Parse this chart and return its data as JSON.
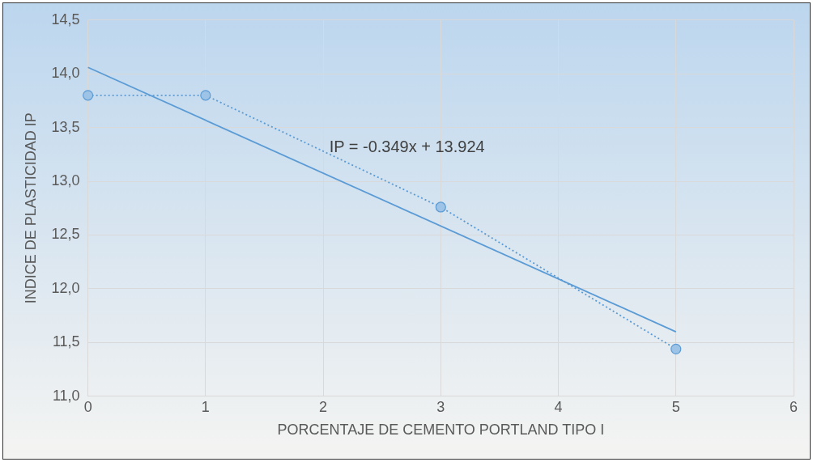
{
  "chart_data": {
    "type": "line",
    "xlabel": "PORCENTAJE DE CEMENTO PORTLAND TIPO I",
    "ylabel": "INDICE DE PLASTICIDAD IP",
    "x": [
      0,
      1,
      3,
      5
    ],
    "series": [
      {
        "color": "#5b9bd5",
        "values": [
          13.8,
          13.8,
          12.76,
          11.44
        ],
        "marker": "circle",
        "line_style": "dotted"
      },
      {
        "type": "line",
        "color": "#5b9bd5",
        "x": [
          0,
          5
        ],
        "values": [
          14.06,
          11.6
        ],
        "marker": "none",
        "line_style": "solid"
      }
    ],
    "xlim": [
      0,
      6
    ],
    "xticks": [
      0,
      1,
      2,
      3,
      4,
      5,
      6
    ],
    "ylim": [
      11,
      14.5
    ],
    "yticks": [
      {
        "value": 11,
        "label": "11,0"
      },
      {
        "value": 11.5,
        "label": "11,5"
      },
      {
        "value": 12,
        "label": "12,0"
      },
      {
        "value": 12.5,
        "label": "12,5"
      },
      {
        "value": 13,
        "label": "13,0"
      },
      {
        "value": 13.5,
        "label": "13,5"
      },
      {
        "value": 14,
        "label": "14,0"
      },
      {
        "value": 14.5,
        "label": "14,5"
      }
    ],
    "annotations": [
      "IP = -0.349x + 13.924"
    ],
    "grid": true,
    "legend": false
  }
}
